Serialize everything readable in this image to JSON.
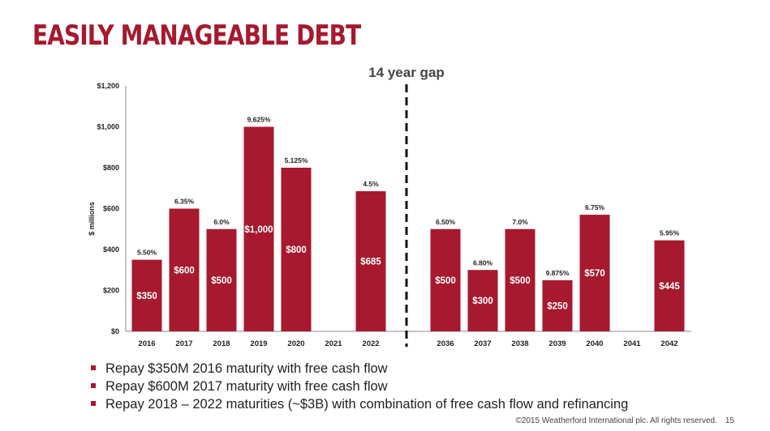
{
  "title": "EASILY MANAGEABLE DEBT",
  "chart_data": {
    "type": "bar",
    "ylabel": "$ millions",
    "ylim": [
      0,
      1200
    ],
    "yticks": [
      "$0",
      "$200",
      "$400",
      "$600",
      "$800",
      "$1,000",
      "$1,200"
    ],
    "gap_label": "14 year gap",
    "bar_color": "#a6192e",
    "groups": [
      {
        "categories": [
          "2016",
          "2017",
          "2018",
          "2019",
          "2020",
          "2021",
          "2022"
        ],
        "values": [
          350,
          600,
          500,
          1000,
          800,
          null,
          685
        ],
        "value_labels": [
          "$350",
          "$600",
          "$500",
          "$1,000",
          "$800",
          "",
          "$685"
        ],
        "rates": [
          "5.50%",
          "6.35%",
          "6.0%",
          "9.625%",
          "5.125%",
          "",
          "4.5%"
        ]
      },
      {
        "categories": [
          "2036",
          "2037",
          "2038",
          "2039",
          "2040",
          "2041",
          "2042"
        ],
        "values": [
          500,
          300,
          500,
          250,
          570,
          null,
          445
        ],
        "value_labels": [
          "$500",
          "$300",
          "$500",
          "$250",
          "$570",
          "",
          "$445"
        ],
        "rates": [
          "6.50%",
          "6.80%",
          "7.0%",
          "9.875%",
          "6.75%",
          "",
          "5.95%"
        ]
      }
    ]
  },
  "bullets": [
    "Repay $350M 2016 maturity with free cash flow",
    "Repay $600M 2017 maturity with free cash flow",
    "Repay 2018 – 2022 maturities (~$3B) with combination of free cash flow and refinancing"
  ],
  "footer": {
    "copyright": "©2015 Weatherford International plc.  All rights reserved.",
    "page": "15"
  }
}
